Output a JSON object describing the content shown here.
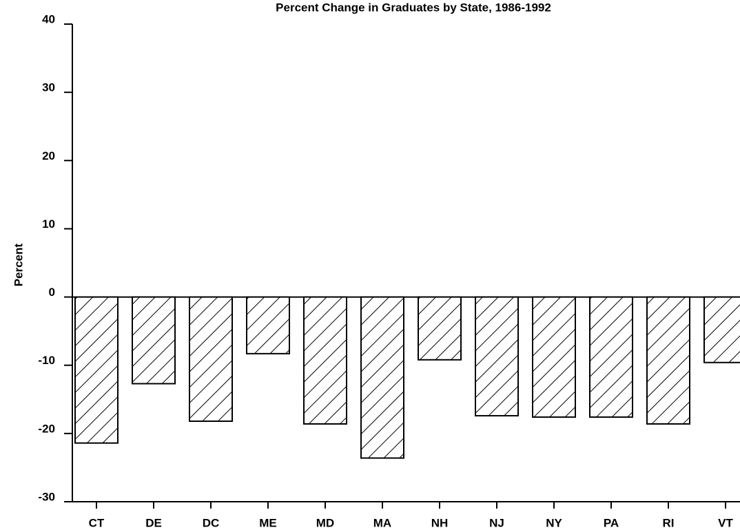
{
  "chart_data": {
    "type": "bar",
    "title": "Percent Change in Graduates by State, 1986-1992",
    "y_label": "Percent",
    "categories": [
      "CT",
      "DE",
      "DC",
      "ME",
      "MD",
      "MA",
      "NH",
      "NJ",
      "NY",
      "PA",
      "RI",
      "VT"
    ],
    "values": [
      -21.4,
      -12.7,
      -18.2,
      -8.3,
      -18.6,
      -23.6,
      -9.2,
      -17.4,
      -17.6,
      -17.6,
      -18.6,
      -9.6
    ],
    "color": "#000000",
    "ylim": [
      -30,
      40
    ],
    "yticks": [
      -30,
      -20,
      -10,
      0,
      10,
      20,
      30,
      40
    ],
    "grid": false
  }
}
